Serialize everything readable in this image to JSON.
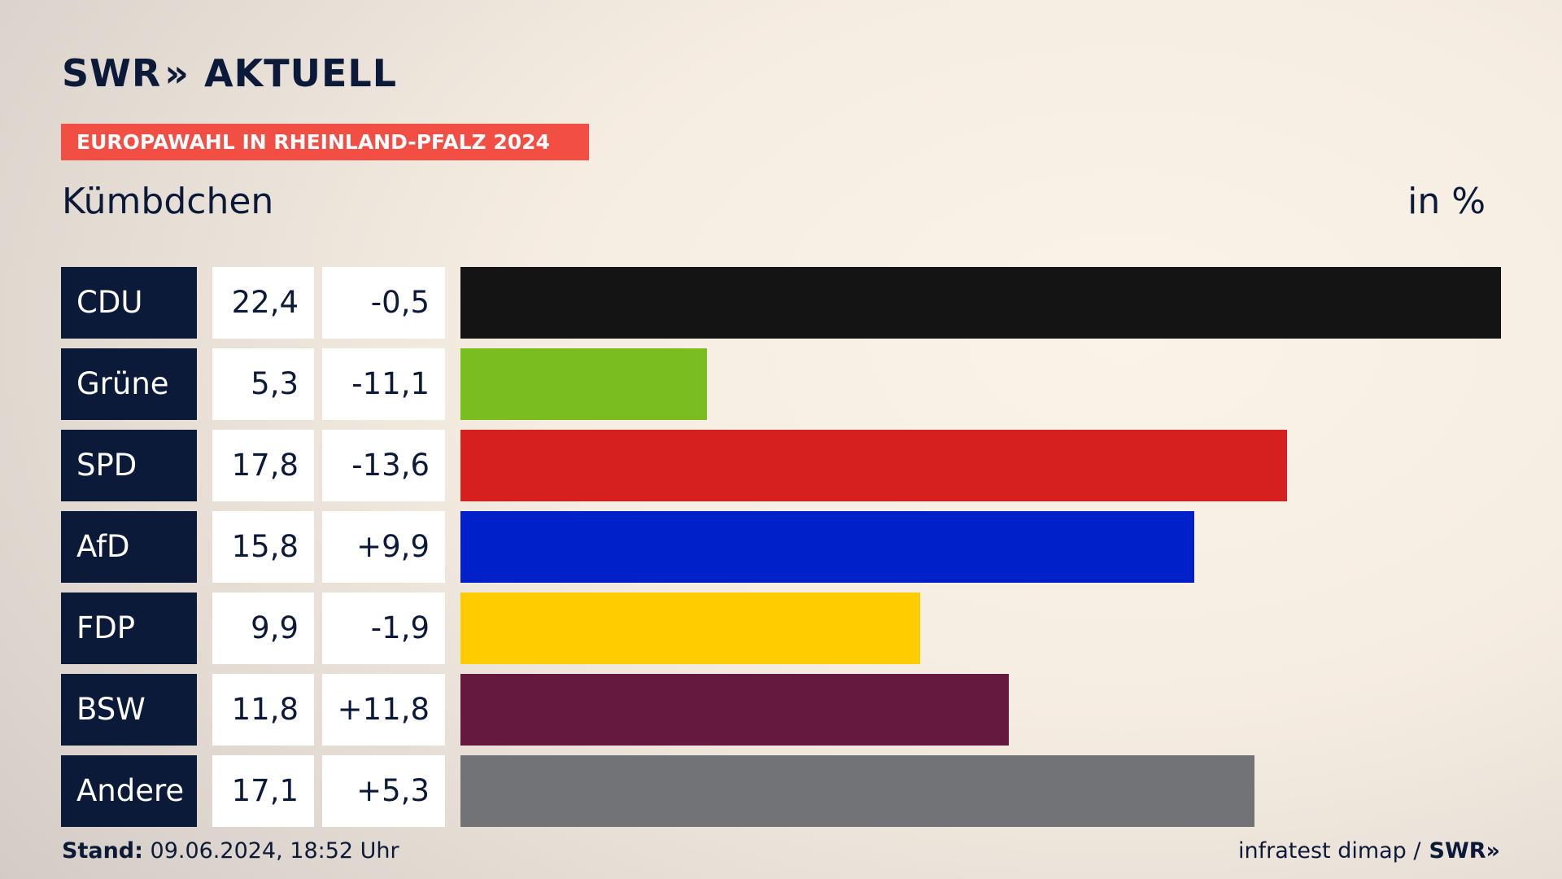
{
  "brand": {
    "swr": "SWR",
    "chevrons": "»",
    "aktuell": "AKTUELL"
  },
  "tag_label": "EUROPAWAHL IN RHEINLAND-PFALZ 2024",
  "subtitle": "Kümbdchen",
  "unit_label": "in %",
  "footer": {
    "stand_label": "Stand:",
    "stand_value": "09.06.2024, 18:52 Uhr",
    "source": "infratest dimap /",
    "swr": "SWR",
    "chevrons": "»"
  },
  "chart_data": {
    "type": "bar",
    "orientation": "horizontal",
    "title": "Kümbdchen",
    "unit": "in %",
    "categories": [
      "CDU",
      "Grüne",
      "SPD",
      "AfD",
      "FDP",
      "BSW",
      "Andere"
    ],
    "values": [
      22.4,
      5.3,
      17.8,
      15.8,
      9.9,
      11.8,
      17.1
    ],
    "value_labels": [
      "22,4",
      "5,3",
      "17,8",
      "15,8",
      "9,9",
      "11,8",
      "17,1"
    ],
    "change_labels": [
      "-0,5",
      "-11,1",
      "-13,6",
      "+9,9",
      "-1,9",
      "+11,8",
      "+5,3"
    ],
    "changes": [
      -0.5,
      -11.1,
      -13.6,
      9.9,
      -1.9,
      11.8,
      5.3
    ],
    "colors": [
      "#141414",
      "#7abd1e",
      "#d61f1f",
      "#0021c9",
      "#ffcc00",
      "#66193f",
      "#727377"
    ],
    "xlim": [
      0,
      22.4
    ]
  }
}
